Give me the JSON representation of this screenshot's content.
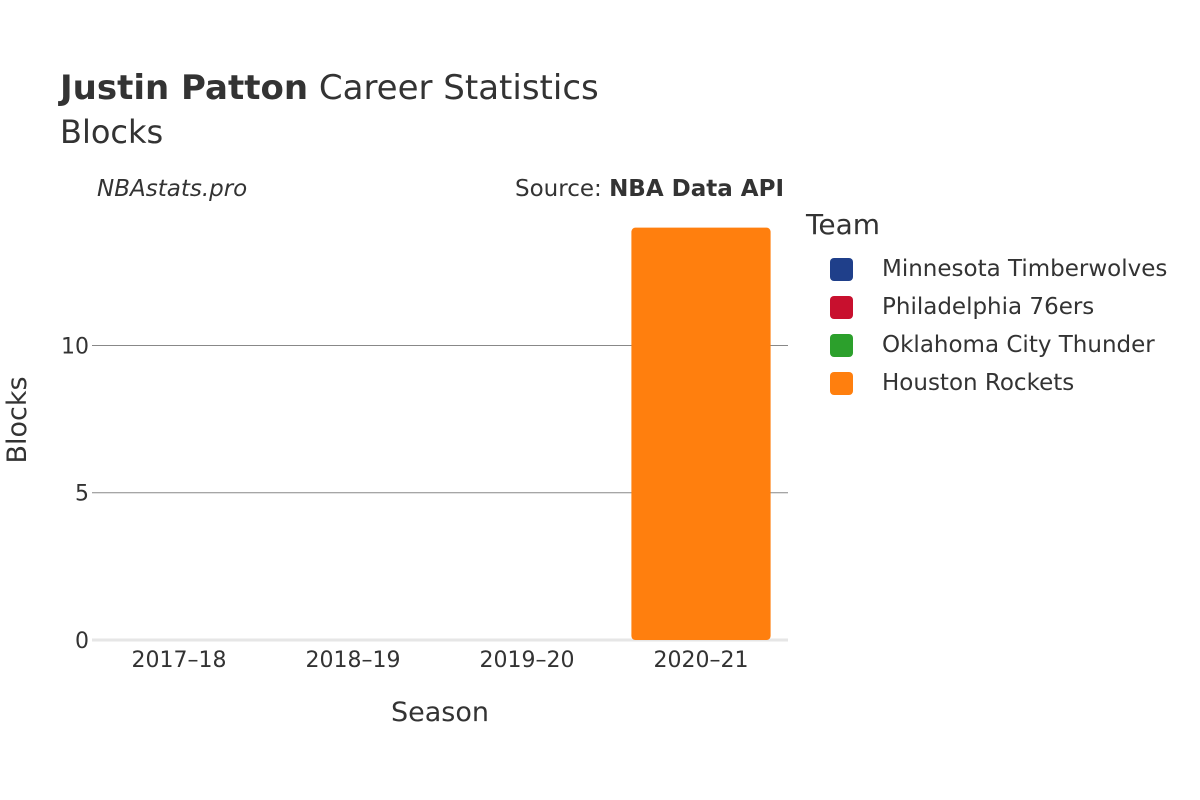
{
  "header": {
    "player_name": "Justin Patton",
    "title_rest": "Career Statistics",
    "subtitle": "Blocks",
    "credit": "NBAstats.pro",
    "source_prefix": "Source:",
    "source_name": "NBA Data API"
  },
  "legend": {
    "title": "Team",
    "items": [
      {
        "label": "Minnesota Timberwolves",
        "color": "#1f3f8a"
      },
      {
        "label": "Philadelphia 76ers",
        "color": "#c8102e"
      },
      {
        "label": "Oklahoma City Thunder",
        "color": "#2ca02c"
      },
      {
        "label": "Houston Rockets",
        "color": "#ff7f0e"
      }
    ]
  },
  "chart_data": {
    "type": "bar",
    "title": "Justin Patton Career Statistics",
    "subtitle": "Blocks",
    "xlabel": "Season",
    "ylabel": "Blocks",
    "categories": [
      "2017–18",
      "2018–19",
      "2019–20",
      "2020–21"
    ],
    "series": [
      {
        "name": "Minnesota Timberwolves",
        "color": "#1f3f8a",
        "values": [
          0,
          0,
          0,
          0
        ]
      },
      {
        "name": "Philadelphia 76ers",
        "color": "#c8102e",
        "values": [
          0,
          0,
          0,
          0
        ]
      },
      {
        "name": "Oklahoma City Thunder",
        "color": "#2ca02c",
        "values": [
          0,
          0,
          0,
          0
        ]
      },
      {
        "name": "Houston Rockets",
        "color": "#ff7f0e",
        "values": [
          0,
          0,
          0,
          14
        ]
      }
    ],
    "y_ticks": [
      0,
      5,
      10
    ],
    "ylim": [
      0,
      14.6
    ],
    "grid": true,
    "legend_position": "right"
  }
}
